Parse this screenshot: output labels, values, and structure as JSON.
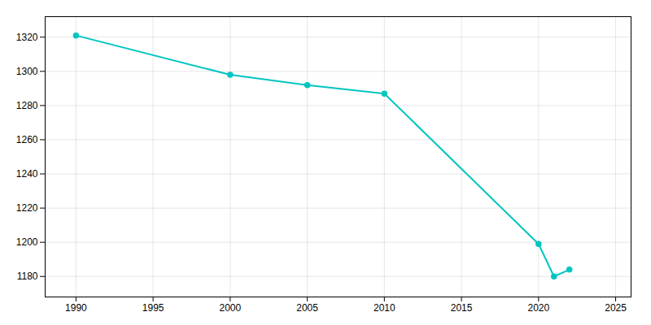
{
  "chart_data": {
    "type": "line",
    "x": [
      1990,
      2000,
      2005,
      2010,
      2020,
      2021,
      2022
    ],
    "values": [
      1321,
      1298,
      1292,
      1287,
      1199,
      1180,
      1184
    ],
    "color": "#00C5C0",
    "marker": "circle",
    "xlim": [
      1988,
      2026
    ],
    "ylim": [
      1168,
      1332
    ],
    "xticks": [
      1990,
      1995,
      2000,
      2005,
      2010,
      2015,
      2020,
      2025
    ],
    "yticks": [
      1180,
      1200,
      1220,
      1240,
      1260,
      1280,
      1300,
      1320
    ],
    "grid": true
  }
}
